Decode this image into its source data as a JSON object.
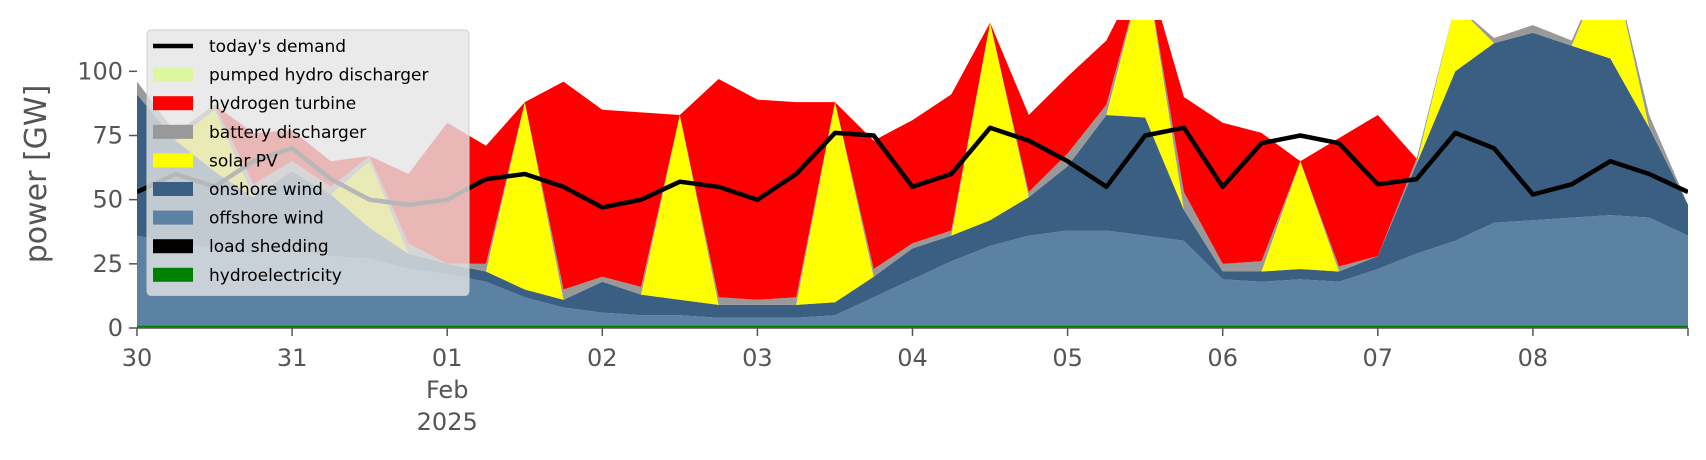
{
  "chart_data": {
    "type": "area",
    "title": "",
    "xlabel": "",
    "ylabel": "power [GW]",
    "ylim": [
      0,
      120
    ],
    "xlim": [
      "2025-01-30",
      "2025-02-09"
    ],
    "y_ticks": [
      0,
      25,
      50,
      75,
      100
    ],
    "y_tick_labels": [
      "0",
      "25",
      "50",
      "75",
      "100"
    ],
    "x_ticks": [
      {
        "date": "2025-01-30",
        "label": "30"
      },
      {
        "date": "2025-01-31",
        "label": "31"
      },
      {
        "date": "2025-02-01",
        "label": "01",
        "sub1": "Feb",
        "sub2": "2025"
      },
      {
        "date": "2025-02-02",
        "label": "02"
      },
      {
        "date": "2025-02-03",
        "label": "03"
      },
      {
        "date": "2025-02-04",
        "label": "04"
      },
      {
        "date": "2025-02-05",
        "label": "05"
      },
      {
        "date": "2025-02-06",
        "label": "06"
      },
      {
        "date": "2025-02-07",
        "label": "07"
      },
      {
        "date": "2025-02-08",
        "label": "08"
      }
    ],
    "legend_position": "top-left",
    "x": [
      "2025-01-30 00:00",
      "2025-01-30 06:00",
      "2025-01-30 12:00",
      "2025-01-30 18:00",
      "2025-01-31 00:00",
      "2025-01-31 06:00",
      "2025-01-31 12:00",
      "2025-01-31 18:00",
      "2025-02-01 00:00",
      "2025-02-01 06:00",
      "2025-02-01 12:00",
      "2025-02-01 18:00",
      "2025-02-02 00:00",
      "2025-02-02 06:00",
      "2025-02-02 12:00",
      "2025-02-02 18:00",
      "2025-02-03 00:00",
      "2025-02-03 06:00",
      "2025-02-03 12:00",
      "2025-02-03 18:00",
      "2025-02-04 00:00",
      "2025-02-04 06:00",
      "2025-02-04 12:00",
      "2025-02-04 18:00",
      "2025-02-05 00:00",
      "2025-02-05 06:00",
      "2025-02-05 12:00",
      "2025-02-05 18:00",
      "2025-02-06 00:00",
      "2025-02-06 06:00",
      "2025-02-06 12:00",
      "2025-02-06 18:00",
      "2025-02-07 00:00",
      "2025-02-07 06:00",
      "2025-02-07 12:00",
      "2025-02-07 18:00",
      "2025-02-08 00:00",
      "2025-02-08 06:00",
      "2025-02-08 12:00",
      "2025-02-08 18:00",
      "2025-02-09 00:00"
    ],
    "stack_order": [
      "hydroelectricity",
      "load shedding",
      "offshore wind",
      "onshore wind",
      "solar PV",
      "battery discharger",
      "hydrogen turbine",
      "pumped hydro discharger"
    ],
    "series": [
      {
        "name": "hydroelectricity",
        "color": "#008000",
        "values": [
          1,
          1,
          1,
          1,
          1,
          1,
          1,
          1,
          1,
          1,
          1,
          1,
          1,
          1,
          1,
          1,
          1,
          1,
          1,
          1,
          1,
          1,
          1,
          1,
          1,
          1,
          1,
          1,
          1,
          1,
          1,
          1,
          1,
          1,
          1,
          1,
          1,
          1,
          1,
          1,
          1
        ]
      },
      {
        "name": "load shedding",
        "color": "#000000",
        "values": [
          0,
          0,
          0,
          0,
          0,
          0,
          0,
          0,
          0,
          0,
          0,
          0,
          0,
          0,
          0,
          0,
          0,
          0,
          0,
          0,
          0,
          0,
          0,
          0,
          0,
          0,
          0,
          0,
          0,
          0,
          0,
          0,
          0,
          0,
          0,
          0,
          0,
          0,
          0,
          0,
          0
        ]
      },
      {
        "name": "offshore wind",
        "color": "#5b81a3",
        "values": [
          35,
          32,
          30,
          28,
          30,
          27,
          26,
          22,
          20,
          17,
          11,
          7,
          5,
          4,
          4,
          3,
          3,
          3,
          4,
          11,
          18,
          25,
          31,
          35,
          37,
          37,
          35,
          33,
          18,
          17,
          18,
          17,
          22,
          28,
          33,
          40,
          41,
          42,
          43,
          42,
          35
        ]
      },
      {
        "name": "onshore wind",
        "color": "#3b5f82",
        "values": [
          55,
          40,
          30,
          22,
          30,
          24,
          12,
          6,
          4,
          4,
          3,
          3,
          12,
          8,
          6,
          5,
          5,
          5,
          5,
          8,
          12,
          10,
          10,
          15,
          25,
          45,
          46,
          12,
          3,
          4,
          4,
          4,
          5,
          35,
          66,
          70,
          73,
          67,
          61,
          35,
          12
        ]
      },
      {
        "name": "solar PV",
        "color": "#ffff00",
        "values": [
          0,
          0,
          24,
          0,
          0,
          0,
          26,
          0,
          0,
          0,
          73,
          0,
          0,
          0,
          72,
          0,
          0,
          0,
          78,
          0,
          0,
          0,
          77,
          0,
          0,
          0,
          60,
          0,
          0,
          0,
          42,
          0,
          0,
          0,
          26,
          0,
          0,
          0,
          41,
          0,
          0
        ]
      },
      {
        "name": "battery discharger",
        "color": "#999999",
        "values": [
          5,
          3,
          2,
          5,
          4,
          3,
          2,
          4,
          0,
          3,
          0,
          4,
          2,
          3,
          0,
          3,
          2,
          3,
          0,
          3,
          2,
          2,
          0,
          2,
          5,
          4,
          0,
          7,
          3,
          4,
          0,
          2,
          0,
          2,
          0,
          2,
          3,
          2,
          0,
          5,
          0
        ]
      },
      {
        "name": "hydrogen turbine",
        "color": "#ff0000",
        "values": [
          0,
          0,
          0,
          20,
          12,
          10,
          0,
          27,
          55,
          46,
          0,
          81,
          65,
          68,
          0,
          85,
          78,
          76,
          0,
          50,
          48,
          53,
          0,
          30,
          30,
          25,
          0,
          37,
          55,
          50,
          0,
          50,
          55,
          0,
          0,
          0,
          0,
          0,
          0,
          0,
          0
        ]
      },
      {
        "name": "pumped hydro discharger",
        "color": "#dcf7a0",
        "values": [
          0,
          0,
          0,
          0,
          0,
          0,
          0,
          0,
          0,
          0,
          0,
          0,
          0,
          0,
          0,
          0,
          0,
          0,
          0,
          0,
          0,
          0,
          0,
          0,
          0,
          0,
          0,
          0,
          0,
          0,
          0,
          0,
          0,
          0,
          0,
          0,
          0,
          0,
          0,
          0,
          0
        ]
      }
    ],
    "demand": {
      "name": "today's demand",
      "color": "#000000",
      "values": [
        53,
        60,
        55,
        65,
        70,
        58,
        50,
        48,
        50,
        58,
        60,
        55,
        47,
        50,
        57,
        55,
        50,
        60,
        76,
        75,
        55,
        60,
        78,
        73,
        65,
        55,
        75,
        78,
        55,
        72,
        75,
        72,
        56,
        58,
        76,
        70,
        52,
        56,
        65,
        60,
        53
      ]
    },
    "legend": [
      {
        "label": "today's demand",
        "color": "#000000",
        "kind": "line"
      },
      {
        "label": "pumped hydro discharger",
        "color": "#dcf7a0",
        "kind": "patch"
      },
      {
        "label": "hydrogen turbine",
        "color": "#ff0000",
        "kind": "patch"
      },
      {
        "label": "battery discharger",
        "color": "#999999",
        "kind": "patch"
      },
      {
        "label": "solar PV",
        "color": "#ffff00",
        "kind": "patch"
      },
      {
        "label": "onshore wind",
        "color": "#3b5f82",
        "kind": "patch"
      },
      {
        "label": "offshore wind",
        "color": "#5b81a3",
        "kind": "patch"
      },
      {
        "label": "load shedding",
        "color": "#000000",
        "kind": "patch"
      },
      {
        "label": "hydroelectricity",
        "color": "#008000",
        "kind": "patch"
      }
    ]
  }
}
